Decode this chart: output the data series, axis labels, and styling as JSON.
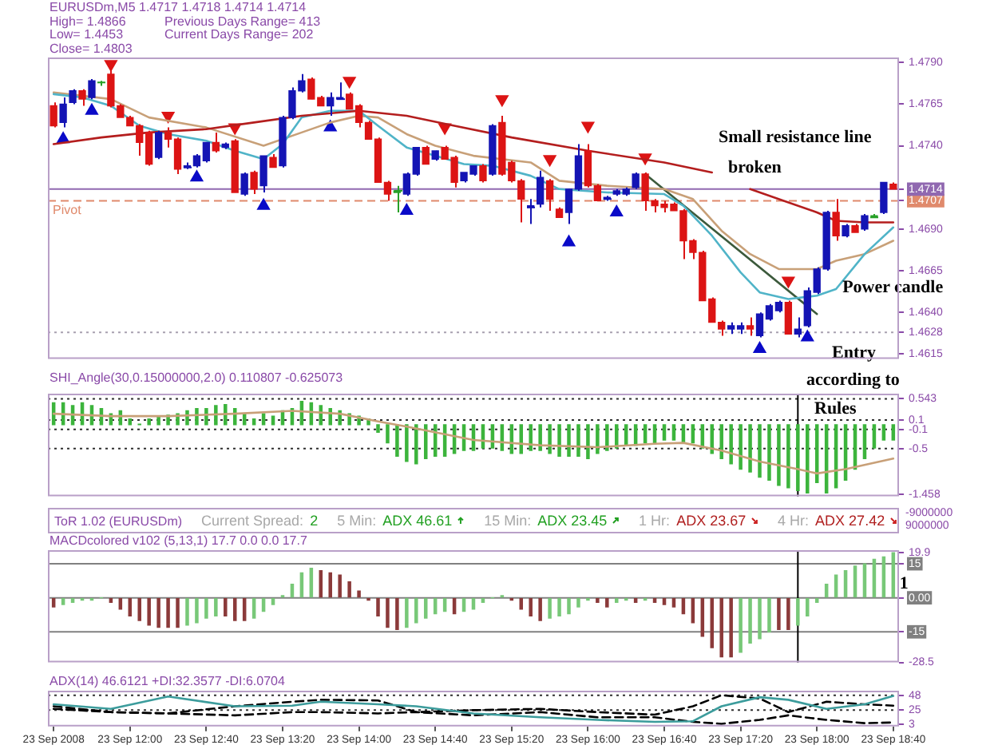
{
  "chart_data": [
    {
      "type": "candlestick",
      "title": "EURUSDm,M5 1.4717 1.4718 1.4714 1.4714",
      "annotations": [
        "High= 1.4866",
        "Previous Days Range= 413",
        "Low= 1.4453",
        "Current Days Range= 202",
        "Close= 1.4803",
        "Small resistance line",
        "broken",
        "Entry",
        {
          "text": "Power candle",
          "x": "2008-09-23T18:10",
          "y": 1.4655
        }
      ],
      "x": [
        "2008-09-23T11:20",
        "2008-09-23T11:25",
        "2008-09-23T11:30",
        "2008-09-23T11:35",
        "2008-09-23T11:40",
        "2008-09-23T11:45",
        "2008-09-23T11:50",
        "2008-09-23T11:55",
        "2008-09-23T12:00",
        "2008-09-23T12:05",
        "2008-09-23T12:10",
        "2008-09-23T12:15",
        "2008-09-23T12:20",
        "2008-09-23T12:25",
        "2008-09-23T12:30",
        "2008-09-23T12:35",
        "2008-09-23T12:40",
        "2008-09-23T12:45",
        "2008-09-23T12:50",
        "2008-09-23T12:55",
        "2008-09-23T13:00",
        "2008-09-23T13:05",
        "2008-09-23T13:10",
        "2008-09-23T13:15",
        "2008-09-23T13:20",
        "2008-09-23T13:25",
        "2008-09-23T13:30",
        "2008-09-23T13:35",
        "2008-09-23T13:40",
        "2008-09-23T13:45",
        "2008-09-23T13:50",
        "2008-09-23T13:55",
        "2008-09-23T14:00",
        "2008-09-23T14:05",
        "2008-09-23T14:10",
        "2008-09-23T14:15",
        "2008-09-23T14:20",
        "2008-09-23T14:25",
        "2008-09-23T14:30",
        "2008-09-23T14:35",
        "2008-09-23T14:40",
        "2008-09-23T14:45",
        "2008-09-23T14:50",
        "2008-09-23T14:55",
        "2008-09-23T15:00",
        "2008-09-23T15:05",
        "2008-09-23T15:10",
        "2008-09-23T15:15",
        "2008-09-23T15:20",
        "2008-09-23T15:25",
        "2008-09-23T15:30",
        "2008-09-23T15:35",
        "2008-09-23T15:40",
        "2008-09-23T15:45",
        "2008-09-23T15:50",
        "2008-09-23T15:55",
        "2008-09-23T16:00",
        "2008-09-23T16:05",
        "2008-09-23T16:10",
        "2008-09-23T16:15",
        "2008-09-23T16:20",
        "2008-09-23T16:25",
        "2008-09-23T16:30",
        "2008-09-23T16:35",
        "2008-09-23T16:40",
        "2008-09-23T16:45",
        "2008-09-23T16:50",
        "2008-09-23T16:55",
        "2008-09-23T17:00",
        "2008-09-23T17:05",
        "2008-09-23T17:10",
        "2008-09-23T17:15",
        "2008-09-23T17:20",
        "2008-09-23T17:25",
        "2008-09-23T17:30",
        "2008-09-23T17:35",
        "2008-09-23T17:40",
        "2008-09-23T17:45",
        "2008-09-23T17:50",
        "2008-09-23T17:55",
        "2008-09-23T18:00",
        "2008-09-23T18:05",
        "2008-09-23T18:10",
        "2008-09-23T18:15",
        "2008-09-23T18:20",
        "2008-09-23T18:25",
        "2008-09-23T18:30",
        "2008-09-23T18:35",
        "2008-09-23T18:40"
      ],
      "ohlc": [
        [
          1.4764,
          1.4766,
          1.4751,
          1.4752
        ],
        [
          1.4754,
          1.4769,
          1.4751,
          1.4765
        ],
        [
          1.4766,
          1.4774,
          1.4765,
          1.4773
        ],
        [
          1.4773,
          1.4774,
          1.4764,
          1.4768
        ],
        [
          1.4769,
          1.478,
          1.4768,
          1.4779
        ],
        [
          1.4778,
          1.4779,
          1.4776,
          1.4778
        ],
        [
          1.4783,
          1.4787,
          1.4763,
          1.4764
        ],
        [
          1.4764,
          1.4765,
          1.4757,
          1.4757
        ],
        [
          1.4757,
          1.4758,
          1.4752,
          1.4752
        ],
        [
          1.4752,
          1.4753,
          1.4734,
          1.4742
        ],
        [
          1.4748,
          1.4749,
          1.4728,
          1.4729
        ],
        [
          1.4733,
          1.4749,
          1.4732,
          1.4748
        ],
        [
          1.4748,
          1.4751,
          1.4739,
          1.4744
        ],
        [
          1.4744,
          1.4745,
          1.4723,
          1.4726
        ],
        [
          1.4727,
          1.473,
          1.4726,
          1.4728
        ],
        [
          1.4728,
          1.4735,
          1.4727,
          1.4734
        ],
        [
          1.4731,
          1.4742,
          1.473,
          1.4742
        ],
        [
          1.4742,
          1.4748,
          1.4736,
          1.4737
        ],
        [
          1.4739,
          1.4742,
          1.4738,
          1.4741
        ],
        [
          1.4743,
          1.4744,
          1.4712,
          1.4712
        ],
        [
          1.4711,
          1.4724,
          1.471,
          1.4723
        ],
        [
          1.4724,
          1.4725,
          1.4711,
          1.4714
        ],
        [
          1.4716,
          1.4734,
          1.4712,
          1.4734
        ],
        [
          1.4733,
          1.4735,
          1.4727,
          1.4727
        ],
        [
          1.4728,
          1.4758,
          1.4727,
          1.4757
        ],
        [
          1.4757,
          1.4775,
          1.4756,
          1.4773
        ],
        [
          1.4773,
          1.4783,
          1.4772,
          1.4779
        ],
        [
          1.478,
          1.4781,
          1.4768,
          1.4768
        ],
        [
          1.4769,
          1.477,
          1.4764,
          1.4764
        ],
        [
          1.4764,
          1.4772,
          1.4758,
          1.4769
        ],
        [
          1.4768,
          1.4778,
          1.4768,
          1.4769
        ],
        [
          1.4771,
          1.4772,
          1.4762,
          1.4762
        ],
        [
          1.4764,
          1.4765,
          1.4751,
          1.4754
        ],
        [
          1.4754,
          1.4755,
          1.4744,
          1.4744
        ],
        [
          1.4744,
          1.4745,
          1.4718,
          1.4718
        ],
        [
          1.4718,
          1.4719,
          1.4707,
          1.4711
        ],
        [
          1.4713,
          1.4716,
          1.47,
          1.4712
        ],
        [
          1.4711,
          1.4724,
          1.471,
          1.4723
        ],
        [
          1.4723,
          1.4739,
          1.4722,
          1.4739
        ],
        [
          1.4739,
          1.474,
          1.4729,
          1.4729
        ],
        [
          1.4732,
          1.4737,
          1.4731,
          1.4737
        ],
        [
          1.4739,
          1.474,
          1.4732,
          1.4732
        ],
        [
          1.4733,
          1.4734,
          1.4715,
          1.4718
        ],
        [
          1.4719,
          1.4724,
          1.4718,
          1.4724
        ],
        [
          1.4723,
          1.4728,
          1.4722,
          1.4728
        ],
        [
          1.4728,
          1.4729,
          1.4718,
          1.4719
        ],
        [
          1.4723,
          1.4753,
          1.4722,
          1.4752
        ],
        [
          1.4754,
          1.4758,
          1.4722,
          1.4723
        ],
        [
          1.473,
          1.4731,
          1.4718,
          1.4719
        ],
        [
          1.4719,
          1.472,
          1.4694,
          1.4708
        ],
        [
          1.4703,
          1.4708,
          1.4693,
          1.4704
        ],
        [
          1.4705,
          1.4725,
          1.4703,
          1.4721
        ],
        [
          1.4719,
          1.472,
          1.4701,
          1.4708
        ],
        [
          1.4702,
          1.4703,
          1.4697,
          1.4697
        ],
        [
          1.47,
          1.4714,
          1.4693,
          1.4714
        ],
        [
          1.4714,
          1.4741,
          1.4713,
          1.4734
        ],
        [
          1.4737,
          1.4741,
          1.4715,
          1.4716
        ],
        [
          1.4716,
          1.4717,
          1.4707,
          1.4707
        ],
        [
          1.4708,
          1.471,
          1.4707,
          1.4709
        ],
        [
          1.4711,
          1.4714,
          1.471,
          1.4713
        ],
        [
          1.4711,
          1.4715,
          1.471,
          1.4714
        ],
        [
          1.4715,
          1.4724,
          1.4714,
          1.4723
        ],
        [
          1.4723,
          1.4724,
          1.4701,
          1.4707
        ],
        [
          1.4707,
          1.4708,
          1.47,
          1.4704
        ],
        [
          1.4705,
          1.4707,
          1.47,
          1.4703
        ],
        [
          1.4705,
          1.4706,
          1.4701,
          1.4701
        ],
        [
          1.4701,
          1.4702,
          1.4672,
          1.4683
        ],
        [
          1.4683,
          1.4684,
          1.4672,
          1.4676
        ],
        [
          1.4676,
          1.4677,
          1.4647,
          1.4647
        ],
        [
          1.4648,
          1.4649,
          1.4634,
          1.4634
        ],
        [
          1.4634,
          1.4635,
          1.4626,
          1.463
        ],
        [
          1.463,
          1.4634,
          1.4627,
          1.4632
        ],
        [
          1.463,
          1.4634,
          1.4627,
          1.4632
        ],
        [
          1.4632,
          1.4637,
          1.4626,
          1.463
        ],
        [
          1.4626,
          1.464,
          1.4625,
          1.4639
        ],
        [
          1.4636,
          1.4645,
          1.4635,
          1.4644
        ],
        [
          1.4641,
          1.4647,
          1.464,
          1.4646
        ],
        [
          1.4646,
          1.4647,
          1.4627,
          1.4627
        ],
        [
          1.4627,
          1.4637,
          1.4625,
          1.463
        ],
        [
          1.4632,
          1.4655,
          1.4631,
          1.4653
        ],
        [
          1.4652,
          1.4667,
          1.4651,
          1.4666
        ],
        [
          1.4666,
          1.4701,
          1.4665,
          1.47
        ],
        [
          1.47,
          1.4708,
          1.4683,
          1.4686
        ],
        [
          1.4686,
          1.4693,
          1.4685,
          1.4692
        ],
        [
          1.4692,
          1.4693,
          1.4688,
          1.4688
        ],
        [
          1.469,
          1.4699,
          1.4689,
          1.4698
        ],
        [
          1.4697,
          1.4699,
          1.4697,
          1.4698
        ],
        [
          1.47,
          1.4718,
          1.4699,
          1.4718
        ],
        [
          1.4717,
          1.4718,
          1.4714,
          1.4714
        ]
      ],
      "colors": [
        "#dc1414",
        "#1414b4",
        "#1414b4",
        "#dc1414",
        "#1414b4",
        "#28a028",
        "#dc1414",
        "#dc1414",
        "#dc1414",
        "#dc1414",
        "#dc1414",
        "#1414b4",
        "#dc1414",
        "#dc1414",
        "#1414b4",
        "#1414b4",
        "#1414b4",
        "#dc1414",
        "#1414b4",
        "#dc1414",
        "#1414b4",
        "#dc1414",
        "#1414b4",
        "#dc1414",
        "#1414b4",
        "#1414b4",
        "#1414b4",
        "#dc1414",
        "#dc1414",
        "#1414b4",
        "#1414b4",
        "#dc1414",
        "#dc1414",
        "#dc1414",
        "#dc1414",
        "#dc1414",
        "#28a028",
        "#1414b4",
        "#1414b4",
        "#dc1414",
        "#1414b4",
        "#dc1414",
        "#dc1414",
        "#1414b4",
        "#1414b4",
        "#dc1414",
        "#1414b4",
        "#dc1414",
        "#dc1414",
        "#dc1414",
        "#1414b4",
        "#1414b4",
        "#dc1414",
        "#dc1414",
        "#1414b4",
        "#1414b4",
        "#dc1414",
        "#dc1414",
        "#1414b4",
        "#1414b4",
        "#1414b4",
        "#1414b4",
        "#dc1414",
        "#dc1414",
        "#dc1414",
        "#dc1414",
        "#dc1414",
        "#dc1414",
        "#dc1414",
        "#dc1414",
        "#dc1414",
        "#1414b4",
        "#1414b4",
        "#dc1414",
        "#1414b4",
        "#1414b4",
        "#1414b4",
        "#dc1414",
        "#1414b4",
        "#1414b4",
        "#1414b4",
        "#1414b4",
        "#dc1414",
        "#1414b4",
        "#dc1414",
        "#1414b4",
        "#28a028",
        "#1414b4",
        "#dc1414"
      ],
      "series": [
        {
          "type": "line",
          "color": "#b41e1e",
          "x": [
            "2008-09-23T11:20",
            "2008-09-23T11:45",
            "2008-09-23T12:10",
            "2008-09-23T12:40",
            "2008-09-23T13:05",
            "2008-09-23T13:30",
            "2008-09-23T14:00",
            "2008-09-23T14:25",
            "2008-09-23T14:50",
            "2008-09-23T15:20",
            "2008-09-23T16:00",
            "2008-09-23T16:40",
            "2008-09-23T17:05",
            "2008-09-23T17:15",
            "2008-09-23T17:25",
            "2008-09-23T18:00",
            "2008-09-23T18:10",
            "2008-09-23T18:25",
            "2008-09-23T18:40"
          ],
          "values": [
            1.4741,
            1.4745,
            1.4748,
            1.475,
            1.4754,
            1.4758,
            1.4761,
            1.4758,
            1.4752,
            1.4745,
            1.4737,
            1.473,
            1.4724,
            null,
            1.4714,
            1.47,
            1.4695,
            1.4694,
            1.4694
          ]
        },
        {
          "type": "line",
          "color": "#50b4c8",
          "x": [
            "2008-09-23T11:20",
            "2008-09-23T11:35",
            "2008-09-23T11:50",
            "2008-09-23T12:05",
            "2008-09-23T12:20",
            "2008-09-23T12:40",
            "2008-09-23T12:55",
            "2008-09-23T13:10",
            "2008-09-23T13:20",
            "2008-09-23T13:30",
            "2008-09-23T13:45",
            "2008-09-23T14:00",
            "2008-09-23T14:10",
            "2008-09-23T14:25",
            "2008-09-23T14:40",
            "2008-09-23T14:55",
            "2008-09-23T15:10",
            "2008-09-23T15:30",
            "2008-09-23T15:45",
            "2008-09-23T16:10",
            "2008-09-23T16:40",
            "2008-09-23T16:50",
            "2008-09-23T17:05",
            "2008-09-23T17:20",
            "2008-09-23T17:30",
            "2008-09-23T17:45",
            "2008-09-23T18:00",
            "2008-09-23T18:10",
            "2008-09-23T18:25",
            "2008-09-23T18:40"
          ],
          "values": [
            1.4771,
            1.4769,
            1.4764,
            1.4752,
            1.4747,
            1.4743,
            1.4737,
            1.4732,
            1.4741,
            1.4757,
            1.4761,
            1.4761,
            1.4752,
            1.4739,
            1.4734,
            1.4729,
            1.4728,
            1.4722,
            1.4714,
            1.4712,
            1.4711,
            1.4704,
            1.4686,
            1.4664,
            1.4652,
            1.4648,
            1.465,
            1.4654,
            1.4675,
            1.4691
          ]
        },
        {
          "type": "line",
          "color": "#c8a078",
          "x": [
            "2008-09-23T11:20",
            "2008-09-23T11:50",
            "2008-09-23T12:10",
            "2008-09-23T12:40",
            "2008-09-23T13:10",
            "2008-09-23T13:30",
            "2008-09-23T13:45",
            "2008-09-23T14:00",
            "2008-09-23T14:10",
            "2008-09-23T14:25",
            "2008-09-23T14:40",
            "2008-09-23T15:00",
            "2008-09-23T15:30",
            "2008-09-23T15:45",
            "2008-09-23T16:10",
            "2008-09-23T16:40",
            "2008-09-23T16:55",
            "2008-09-23T17:10",
            "2008-09-23T17:25",
            "2008-09-23T17:40",
            "2008-09-23T18:00",
            "2008-09-23T18:10",
            "2008-09-23T18:25",
            "2008-09-23T18:40"
          ],
          "values": [
            1.4772,
            1.4768,
            1.4757,
            1.4751,
            1.474,
            1.4748,
            1.4754,
            1.4758,
            1.4757,
            1.4747,
            1.474,
            1.4734,
            1.473,
            1.4719,
            1.4716,
            1.4714,
            1.4708,
            1.4689,
            1.4675,
            1.4666,
            1.4666,
            1.4671,
            1.4675,
            1.4683
          ]
        },
        {
          "type": "line",
          "color": "#3c5a3c",
          "x": [
            "2008-09-23T16:30",
            "2008-09-23T18:00"
          ],
          "values": [
            1.4723,
            1.4639
          ]
        },
        {
          "type": "scatter",
          "color": "#0a0ac8",
          "marker": "triangle",
          "x": [
            "2008-09-23T11:25",
            "2008-09-23T11:40",
            "2008-09-23T12:35",
            "2008-09-23T13:10",
            "2008-09-23T13:45",
            "2008-09-23T14:25",
            "2008-09-23T15:50",
            "2008-09-23T16:15",
            "2008-09-23T17:30",
            "2008-09-23T17:55"
          ],
          "values": [
            1.4744,
            1.4761,
            1.4721,
            1.4704,
            1.4751,
            1.4701,
            1.4682,
            1.47,
            1.4618,
            1.4625
          ]
        },
        {
          "type": "scatter",
          "color": "#dc1414",
          "marker": "triangle",
          "x": [
            "2008-09-23T11:50",
            "2008-09-23T12:20",
            "2008-09-23T12:55",
            "2008-09-23T13:55",
            "2008-09-23T14:45",
            "2008-09-23T15:15",
            "2008-09-23T15:40",
            "2008-09-23T16:00",
            "2008-09-23T16:30",
            "2008-09-23T17:45"
          ],
          "values": [
            1.4789,
            1.4758,
            1.4751,
            1.4779,
            1.4751,
            1.4768,
            1.4732,
            1.4752,
            1.4733,
            1.4659
          ]
        }
      ],
      "xlim": [
        "2008-09-23T11:17",
        "2008-09-23T18:43"
      ],
      "ylim": [
        1.4612,
        1.4793
      ],
      "yticks": [
        1.4615,
        1.4628,
        {
          "value": 1.464,
          "label": "1.4640"
        },
        1.4665,
        {
          "value": 1.469,
          "label": "1.4690"
        },
        1.4707,
        1.4714,
        {
          "value": 1.474,
          "label": "1.4740"
        },
        1.4765,
        {
          "value": 1.479,
          "label": "1.4790"
        }
      ],
      "ref_lines": [
        {
          "axis": "y",
          "value": 1.4714,
          "color": "#9068b0"
        },
        {
          "axis": "y",
          "value": 1.4707,
          "label": "Pivot",
          "color": "#e08a6c",
          "line_style": "dashed"
        },
        {
          "axis": "y",
          "value": 1.4628,
          "color": "#a8a0b0",
          "line_style": "dotted"
        }
      ],
      "tick_labels": "y"
    },
    {
      "type": "bar",
      "title": "SHI_Angle(30,0.15000000,2.0) 0.110807 -0.625073",
      "color": "#3cb43c",
      "annotations": [
        "according to",
        "Rules"
      ],
      "x": [
        "2008-09-23T11:20",
        "2008-09-23T11:25",
        "2008-09-23T11:30",
        "2008-09-23T11:35",
        "2008-09-23T11:40",
        "2008-09-23T11:45",
        "2008-09-23T11:50",
        "2008-09-23T11:55",
        "2008-09-23T12:00",
        "2008-09-23T12:05",
        "2008-09-23T12:10",
        "2008-09-23T12:15",
        "2008-09-23T12:20",
        "2008-09-23T12:25",
        "2008-09-23T12:30",
        "2008-09-23T12:35",
        "2008-09-23T12:40",
        "2008-09-23T12:45",
        "2008-09-23T12:50",
        "2008-09-23T12:55",
        "2008-09-23T13:00",
        "2008-09-23T13:05",
        "2008-09-23T13:10",
        "2008-09-23T13:15",
        "2008-09-23T13:20",
        "2008-09-23T13:25",
        "2008-09-23T13:30",
        "2008-09-23T13:35",
        "2008-09-23T13:40",
        "2008-09-23T13:45",
        "2008-09-23T13:50",
        "2008-09-23T13:55",
        "2008-09-23T14:00",
        "2008-09-23T14:05",
        "2008-09-23T14:10",
        "2008-09-23T14:15",
        "2008-09-23T14:20",
        "2008-09-23T14:25",
        "2008-09-23T14:30",
        "2008-09-23T14:35",
        "2008-09-23T14:40",
        "2008-09-23T14:45",
        "2008-09-23T14:50",
        "2008-09-23T14:55",
        "2008-09-23T15:00",
        "2008-09-23T15:05",
        "2008-09-23T15:10",
        "2008-09-23T15:15",
        "2008-09-23T15:20",
        "2008-09-23T15:25",
        "2008-09-23T15:30",
        "2008-09-23T15:35",
        "2008-09-23T15:40",
        "2008-09-23T15:45",
        "2008-09-23T15:50",
        "2008-09-23T15:55",
        "2008-09-23T16:00",
        "2008-09-23T16:05",
        "2008-09-23T16:10",
        "2008-09-23T16:15",
        "2008-09-23T16:20",
        "2008-09-23T16:25",
        "2008-09-23T16:30",
        "2008-09-23T16:35",
        "2008-09-23T16:40",
        "2008-09-23T16:45",
        "2008-09-23T16:50",
        "2008-09-23T16:55",
        "2008-09-23T17:00",
        "2008-09-23T17:05",
        "2008-09-23T17:10",
        "2008-09-23T17:15",
        "2008-09-23T17:20",
        "2008-09-23T17:25",
        "2008-09-23T17:30",
        "2008-09-23T17:35",
        "2008-09-23T17:40",
        "2008-09-23T17:45",
        "2008-09-23T17:50",
        "2008-09-23T17:55",
        "2008-09-23T18:00",
        "2008-09-23T18:05",
        "2008-09-23T18:10",
        "2008-09-23T18:15",
        "2008-09-23T18:20",
        "2008-09-23T18:25",
        "2008-09-23T18:30",
        "2008-09-23T18:35",
        "2008-09-23T18:40"
      ],
      "values": [
        0.46,
        0.46,
        0.4,
        0.46,
        0.4,
        0.34,
        0.23,
        0.29,
        0.12,
        0.01,
        0.12,
        0.18,
        0.2,
        0.23,
        0.29,
        0.34,
        0.34,
        0.4,
        0.42,
        0.34,
        0.23,
        0.12,
        0.23,
        0.18,
        0.29,
        0.34,
        0.49,
        0.46,
        0.4,
        0.34,
        0.29,
        0.23,
        0.18,
        0.12,
        -0.16,
        -0.38,
        -0.66,
        -0.77,
        -0.82,
        -0.71,
        -0.66,
        -0.66,
        -0.6,
        -0.54,
        -0.54,
        -0.49,
        -0.49,
        -0.54,
        -0.6,
        -0.6,
        -0.54,
        -0.54,
        -0.6,
        -0.66,
        -0.66,
        -0.66,
        -0.71,
        -0.6,
        -0.54,
        -0.49,
        -0.43,
        -0.43,
        -0.38,
        -0.38,
        -0.32,
        -0.32,
        -0.38,
        -0.38,
        -0.49,
        -0.6,
        -0.71,
        -0.82,
        -0.93,
        -0.99,
        -1.1,
        -1.16,
        -1.27,
        -1.32,
        -1.38,
        -1.43,
        -1.21,
        -1.43,
        -1.32,
        -1.16,
        -0.93,
        -0.71,
        -0.49,
        -0.32,
        -0.32
      ],
      "series": [
        {
          "type": "line",
          "color": "#c8a078",
          "x": [
            "2008-09-23T11:20",
            "2008-09-23T11:50",
            "2008-09-23T12:20",
            "2008-09-23T12:55",
            "2008-09-23T13:25",
            "2008-09-23T13:50",
            "2008-09-23T14:10",
            "2008-09-23T14:25",
            "2008-09-23T15:00",
            "2008-09-23T15:35",
            "2008-09-23T16:05",
            "2008-09-23T16:35",
            "2008-09-23T16:50",
            "2008-09-23T17:10",
            "2008-09-23T17:30",
            "2008-09-23T17:50",
            "2008-09-23T18:00",
            "2008-09-23T18:15",
            "2008-09-23T18:40"
          ],
          "values": [
            0.23,
            0.18,
            0.18,
            0.23,
            0.29,
            0.23,
            0.07,
            -0.04,
            -0.32,
            -0.43,
            -0.47,
            -0.4,
            -0.38,
            -0.54,
            -0.77,
            -0.93,
            -1.02,
            -0.93,
            -0.71
          ]
        }
      ],
      "xlim": [
        "2008-09-23T11:17",
        "2008-09-23T18:43"
      ],
      "ylim": [
        -1.5,
        0.65
      ],
      "yticks": [
        0.543,
        0.1,
        -0.1,
        -0.5,
        -1.458
      ],
      "ref_lines": [
        {
          "axis": "y",
          "value": 0.543,
          "color": "#303030",
          "line_style": "dotted"
        },
        {
          "axis": "y",
          "value": 0.1,
          "color": "#303030",
          "line_style": "dotted"
        },
        {
          "axis": "y",
          "value": -0.1,
          "color": "#303030",
          "line_style": "dotted"
        },
        {
          "axis": "y",
          "value": -0.5,
          "color": "#303030",
          "line_style": "dotted"
        },
        {
          "axis": "x",
          "value": "2008-09-23T17:50",
          "color": "#000000"
        }
      ],
      "tick_labels": "y"
    },
    {
      "type": "other",
      "annotations": [
        "ToR 1.02 (EURUSDm)",
        "Current Spread:",
        "2",
        "5 Min:",
        "ADX 46.61",
        "15 Min:",
        "ADX 23.45",
        "1 Hr:",
        "ADX 23.67",
        "4 Hr:",
        "ADX 27.42",
        "-9000000",
        "9000000"
      ]
    },
    {
      "type": "bar",
      "title": "MACDcolored v102 (5,13,1) 17.7 0.0 0.0 17.7",
      "annotations": [
        {
          "text": "1",
          "x": "2008-09-23T18:40",
          "y": 6
        }
      ],
      "x": [
        "2008-09-23T11:20",
        "2008-09-23T11:25",
        "2008-09-23T11:30",
        "2008-09-23T11:35",
        "2008-09-23T11:40",
        "2008-09-23T11:45",
        "2008-09-23T11:50",
        "2008-09-23T11:55",
        "2008-09-23T12:00",
        "2008-09-23T12:05",
        "2008-09-23T12:10",
        "2008-09-23T12:15",
        "2008-09-23T12:20",
        "2008-09-23T12:25",
        "2008-09-23T12:30",
        "2008-09-23T12:35",
        "2008-09-23T12:40",
        "2008-09-23T12:45",
        "2008-09-23T12:50",
        "2008-09-23T12:55",
        "2008-09-23T13:00",
        "2008-09-23T13:05",
        "2008-09-23T13:10",
        "2008-09-23T13:15",
        "2008-09-23T13:20",
        "2008-09-23T13:25",
        "2008-09-23T13:30",
        "2008-09-23T13:35",
        "2008-09-23T13:40",
        "2008-09-23T13:45",
        "2008-09-23T13:50",
        "2008-09-23T13:55",
        "2008-09-23T14:00",
        "2008-09-23T14:05",
        "2008-09-23T14:10",
        "2008-09-23T14:15",
        "2008-09-23T14:20",
        "2008-09-23T14:25",
        "2008-09-23T14:30",
        "2008-09-23T14:35",
        "2008-09-23T14:40",
        "2008-09-23T14:45",
        "2008-09-23T14:50",
        "2008-09-23T14:55",
        "2008-09-23T15:00",
        "2008-09-23T15:05",
        "2008-09-23T15:10",
        "2008-09-23T15:15",
        "2008-09-23T15:20",
        "2008-09-23T15:25",
        "2008-09-23T15:30",
        "2008-09-23T15:35",
        "2008-09-23T15:40",
        "2008-09-23T15:45",
        "2008-09-23T15:50",
        "2008-09-23T15:55",
        "2008-09-23T16:00",
        "2008-09-23T16:05",
        "2008-09-23T16:10",
        "2008-09-23T16:15",
        "2008-09-23T16:20",
        "2008-09-23T16:25",
        "2008-09-23T16:30",
        "2008-09-23T16:35",
        "2008-09-23T16:40",
        "2008-09-23T16:45",
        "2008-09-23T16:50",
        "2008-09-23T16:55",
        "2008-09-23T17:00",
        "2008-09-23T17:05",
        "2008-09-23T17:10",
        "2008-09-23T17:15",
        "2008-09-23T17:20",
        "2008-09-23T17:25",
        "2008-09-23T17:30",
        "2008-09-23T17:35",
        "2008-09-23T17:40",
        "2008-09-23T17:45",
        "2008-09-23T17:50",
        "2008-09-23T17:55",
        "2008-09-23T18:00",
        "2008-09-23T18:05",
        "2008-09-23T18:10",
        "2008-09-23T18:15",
        "2008-09-23T18:20",
        "2008-09-23T18:25",
        "2008-09-23T18:30",
        "2008-09-23T18:35",
        "2008-09-23T18:40"
      ],
      "values": [
        -4,
        -3,
        -2,
        -1,
        -1,
        0,
        -2,
        -5,
        -8,
        -10,
        -12,
        -13,
        -13,
        -13,
        -12,
        -11,
        -9,
        -8,
        -8,
        -10,
        -10,
        -9,
        -6,
        -3,
        1,
        6,
        11,
        13,
        12,
        11,
        10,
        7,
        3,
        -1,
        -8,
        -13,
        -14,
        -13,
        -11,
        -9,
        -7,
        -6,
        -7,
        -6,
        -5,
        -2,
        0,
        1,
        -1,
        -5,
        -8,
        -10,
        -9,
        -8,
        -7,
        -4,
        -1,
        -2,
        -4,
        -2,
        -1,
        -2,
        -1,
        -2,
        -3,
        -4,
        -7,
        -11,
        -17,
        -22,
        -26,
        -26,
        -24,
        -20,
        -18,
        -15,
        -14,
        -14,
        -12,
        -8,
        -2,
        6,
        10,
        12,
        14,
        15,
        17,
        18,
        19.9
      ],
      "colors": [
        "#8b3a3a",
        "#78c878",
        "#78c878",
        "#78c878",
        "#78c878",
        "#78c878",
        "#8b3a3a",
        "#8b3a3a",
        "#8b3a3a",
        "#8b3a3a",
        "#8b3a3a",
        "#8b3a3a",
        "#8b3a3a",
        "#8b3a3a",
        "#78c878",
        "#78c878",
        "#78c878",
        "#78c878",
        "#8b3a3a",
        "#8b3a3a",
        "#8b3a3a",
        "#78c878",
        "#78c878",
        "#78c878",
        "#78c878",
        "#78c878",
        "#78c878",
        "#78c878",
        "#8b3a3a",
        "#8b3a3a",
        "#8b3a3a",
        "#8b3a3a",
        "#8b3a3a",
        "#8b3a3a",
        "#8b3a3a",
        "#8b3a3a",
        "#8b3a3a",
        "#78c878",
        "#78c878",
        "#78c878",
        "#78c878",
        "#78c878",
        "#8b3a3a",
        "#78c878",
        "#78c878",
        "#78c878",
        "#78c878",
        "#78c878",
        "#8b3a3a",
        "#8b3a3a",
        "#8b3a3a",
        "#8b3a3a",
        "#78c878",
        "#78c878",
        "#78c878",
        "#78c878",
        "#78c878",
        "#8b3a3a",
        "#8b3a3a",
        "#78c878",
        "#78c878",
        "#8b3a3a",
        "#78c878",
        "#8b3a3a",
        "#8b3a3a",
        "#8b3a3a",
        "#8b3a3a",
        "#8b3a3a",
        "#8b3a3a",
        "#8b3a3a",
        "#8b3a3a",
        "#8b3a3a",
        "#78c878",
        "#78c878",
        "#78c878",
        "#78c878",
        "#8b3a3a",
        "#8b3a3a",
        "#78c878",
        "#78c878",
        "#78c878",
        "#78c878",
        "#78c878",
        "#78c878",
        "#78c878",
        "#78c878",
        "#78c878",
        "#78c878",
        "#78c878"
      ],
      "xlim": [
        "2008-09-23T11:17",
        "2008-09-23T18:43"
      ],
      "ylim": [
        -28.5,
        21
      ],
      "yticks": [
        19.9,
        15,
        {
          "value": 0,
          "label": "0.00"
        },
        -15,
        -28.5
      ],
      "ref_lines": [
        {
          "axis": "y",
          "value": 15,
          "color": "#808080"
        },
        {
          "axis": "y",
          "value": 0,
          "color": "#808080"
        },
        {
          "axis": "y",
          "value": -15,
          "color": "#808080"
        },
        {
          "axis": "x",
          "value": "2008-09-23T17:50",
          "color": "#000000"
        }
      ],
      "tick_labels": "y"
    },
    {
      "type": "line",
      "title": "ADX(14) 46.6121 +DI:32.3577 -DI:6.0704",
      "series": [
        {
          "color": "#3c9c9c",
          "line_style": "solid",
          "x": [
            "2008-09-23T11:20",
            "2008-09-23T11:50",
            "2008-09-23T12:20",
            "2008-09-23T12:55",
            "2008-09-23T13:25",
            "2008-09-23T13:40",
            "2008-09-23T14:10",
            "2008-09-23T14:30",
            "2008-09-23T15:00",
            "2008-09-23T15:35",
            "2008-09-23T16:05",
            "2008-09-23T16:35",
            "2008-09-23T16:55",
            "2008-09-23T17:10",
            "2008-09-23T17:30",
            "2008-09-23T17:45",
            "2008-09-23T18:05",
            "2008-09-23T18:25",
            "2008-09-23T18:40"
          ],
          "values": [
            34,
            27,
            46,
            31,
            32,
            38,
            34,
            31,
            20,
            14,
            10,
            7,
            8,
            31,
            45,
            41,
            27,
            34,
            47
          ]
        },
        {
          "color": "#000000",
          "line_style": "dashed",
          "x": [
            "2008-09-23T11:20",
            "2008-09-23T11:50",
            "2008-09-23T12:20",
            "2008-09-23T12:55",
            "2008-09-23T13:25",
            "2008-09-23T13:40",
            "2008-09-23T14:10",
            "2008-09-23T14:30",
            "2008-09-23T15:00",
            "2008-09-23T15:35",
            "2008-09-23T16:05",
            "2008-09-23T16:35",
            "2008-09-23T16:55",
            "2008-09-23T17:10",
            "2008-09-23T17:30",
            "2008-09-23T17:45",
            "2008-09-23T18:05",
            "2008-09-23T18:25",
            "2008-09-23T18:40"
          ],
          "values": [
            31,
            22,
            20,
            31,
            38,
            41,
            40,
            22,
            25,
            27,
            22,
            18,
            31,
            48,
            43,
            22,
            38,
            34,
            32
          ]
        },
        {
          "color": "#000000",
          "line_style": "dashed",
          "x": [
            "2008-09-23T11:20",
            "2008-09-23T11:50",
            "2008-09-23T12:20",
            "2008-09-23T12:55",
            "2008-09-23T13:25",
            "2008-09-23T13:40",
            "2008-09-23T14:10",
            "2008-09-23T14:30",
            "2008-09-23T15:00",
            "2008-09-23T15:35",
            "2008-09-23T16:05",
            "2008-09-23T16:35",
            "2008-09-23T16:55",
            "2008-09-23T17:10",
            "2008-09-23T17:30",
            "2008-09-23T17:45",
            "2008-09-23T18:05",
            "2008-09-23T18:25",
            "2008-09-23T18:40"
          ],
          "values": [
            27,
            22,
            20,
            17,
            22,
            22,
            20,
            22,
            17,
            22,
            14,
            14,
            7,
            4,
            10,
            17,
            10,
            5,
            6
          ]
        }
      ],
      "xlim": [
        "2008-09-23T11:17",
        "2008-09-23T18:43"
      ],
      "ylim": [
        0,
        55
      ],
      "xticks": [
        {
          "value": "2008-09-23T11:20",
          "label": "23 Sep 2008"
        },
        {
          "value": "2008-09-23T12:00",
          "label": "23 Sep 12:00"
        },
        {
          "value": "2008-09-23T12:40",
          "label": "23 Sep 12:40"
        },
        {
          "value": "2008-09-23T13:20",
          "label": "23 Sep 13:20"
        },
        {
          "value": "2008-09-23T14:00",
          "label": "23 Sep 14:00"
        },
        {
          "value": "2008-09-23T14:40",
          "label": "23 Sep 14:40"
        },
        {
          "value": "2008-09-23T15:20",
          "label": "23 Sep 15:20"
        },
        {
          "value": "2008-09-23T16:00",
          "label": "23 Sep 16:00"
        },
        {
          "value": "2008-09-23T16:40",
          "label": "23 Sep 16:40"
        },
        {
          "value": "2008-09-23T17:20",
          "label": "23 Sep 17:20"
        },
        {
          "value": "2008-09-23T18:00",
          "label": "23 Sep 18:00"
        },
        {
          "value": "2008-09-23T18:40",
          "label": "23 Sep 18:40"
        }
      ],
      "yticks": [
        48,
        25,
        3
      ],
      "ref_lines": [
        {
          "axis": "y",
          "value": 48,
          "color": "#303030",
          "line_style": "dotted"
        },
        {
          "axis": "y",
          "value": 25,
          "color": "#303030",
          "line_style": "dotted"
        }
      ]
    }
  ]
}
